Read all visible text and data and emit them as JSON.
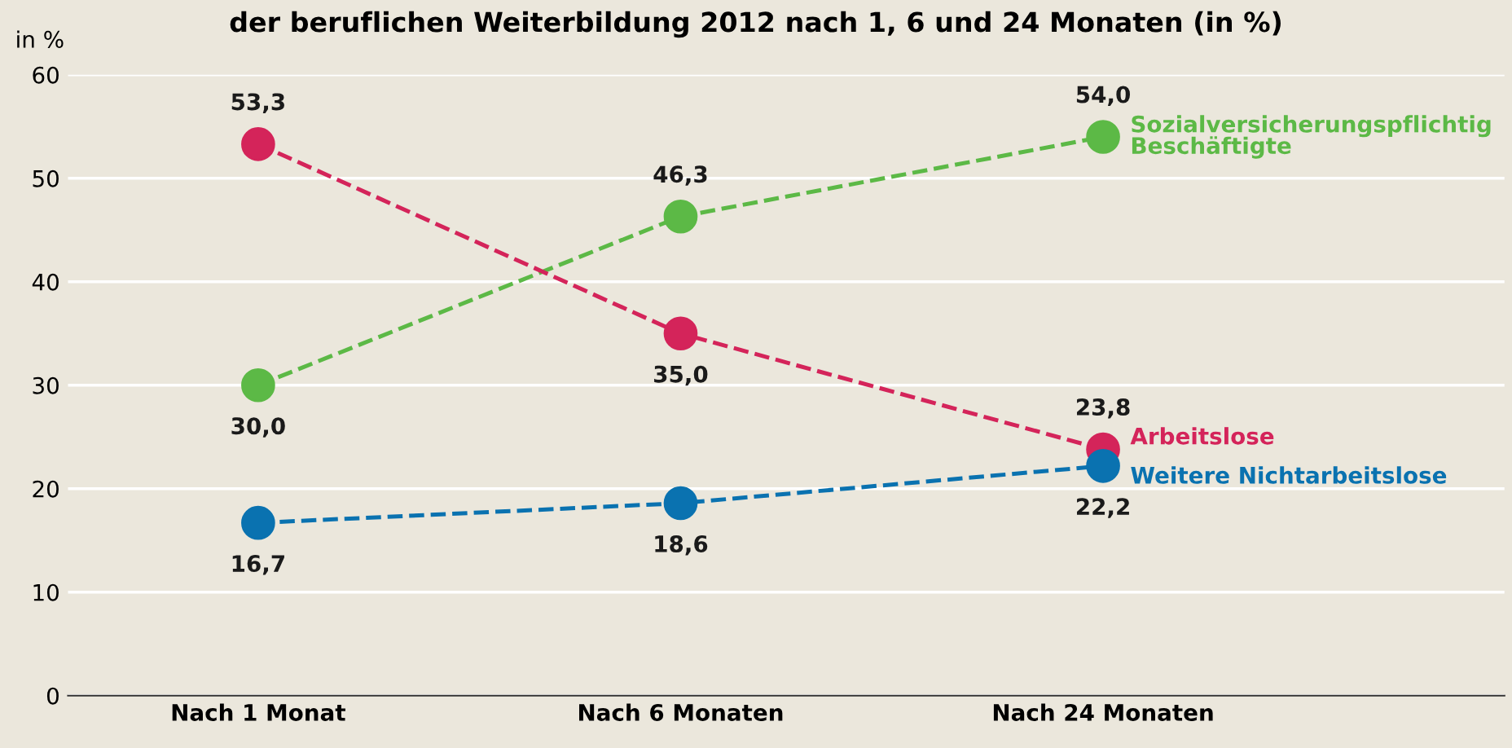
{
  "chart_data": {
    "type": "line",
    "title": "der beruflichen Weiterbildung 2012 nach 1, 6 und 24 Monaten (in %)",
    "ylabel": "in %",
    "categories": [
      "Nach 1 Monat",
      "Nach 6 Monaten",
      "Nach 24 Monaten"
    ],
    "series": [
      {
        "name": "Sozialversicherungspflichtig\nBeschäftigte",
        "color": "#5cb946",
        "values": [
          30.0,
          46.3,
          54.0
        ],
        "value_labels": [
          "30,0",
          "46,3",
          "54,0"
        ]
      },
      {
        "name": "Arbeitslose",
        "color": "#d4245a",
        "values": [
          53.3,
          35.0,
          23.8
        ],
        "value_labels": [
          "53,3",
          "35,0",
          "23,8"
        ]
      },
      {
        "name": "Weitere Nichtarbeitslose",
        "color": "#0a72b0",
        "values": [
          16.7,
          18.6,
          22.2
        ],
        "value_labels": [
          "16,7",
          "18,6",
          "22,2"
        ]
      }
    ],
    "ylim": [
      0,
      60
    ],
    "yticks": [
      0,
      10,
      20,
      30,
      40,
      50,
      60
    ],
    "grid": "y",
    "marker": "circle",
    "line_style": "dashed",
    "legend": false
  }
}
